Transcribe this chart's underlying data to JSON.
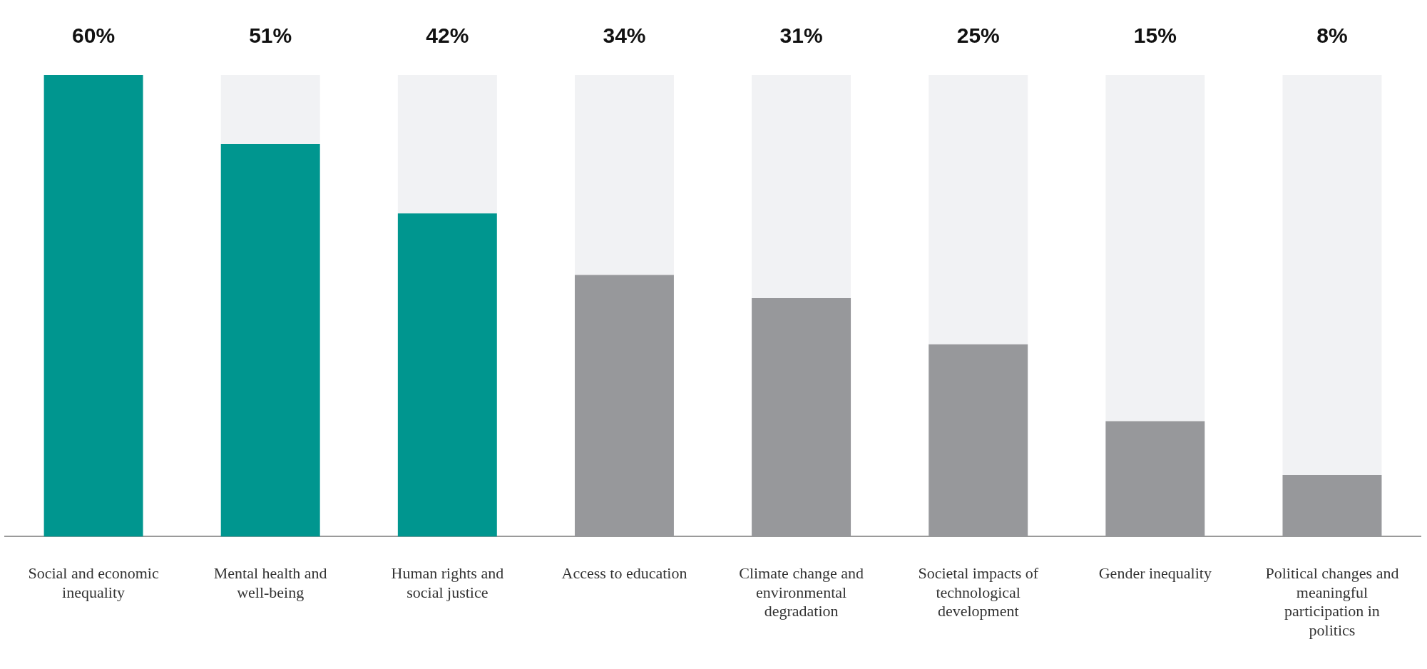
{
  "chart_data": {
    "type": "bar",
    "stacked": true,
    "categories": [
      "Social and economic inequality",
      "Mental health and well-being",
      "Human rights and social justice",
      "Access to education",
      "Climate change and environmental degradation",
      "Societal impacts of technological development",
      "Gender inequality",
      "Political changes and meaningful participation in politics"
    ],
    "series": [
      {
        "colors": [
          "#00968f",
          "#00968f",
          "#00968f",
          "#97989b",
          "#97989b",
          "#97989b",
          "#97989b",
          "#97989b"
        ],
        "values": [
          60,
          51,
          42,
          34,
          31,
          25,
          15,
          8
        ],
        "value_labels": [
          "60%",
          "51%",
          "42%",
          "34%",
          "31%",
          "25%",
          "15%",
          "8%"
        ]
      },
      {
        "color": "#f1f2f4",
        "values": [
          0,
          9,
          18,
          26,
          29,
          35,
          45,
          52
        ]
      }
    ],
    "ylim": [
      0,
      60
    ],
    "tick_labels": "x",
    "grid": false,
    "legend": false
  }
}
